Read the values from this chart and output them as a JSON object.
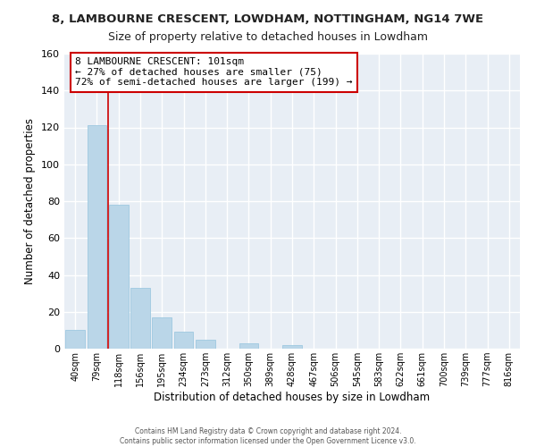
{
  "title": "8, LAMBOURNE CRESCENT, LOWDHAM, NOTTINGHAM, NG14 7WE",
  "subtitle": "Size of property relative to detached houses in Lowdham",
  "xlabel": "Distribution of detached houses by size in Lowdham",
  "ylabel": "Number of detached properties",
  "bar_labels": [
    "40sqm",
    "79sqm",
    "118sqm",
    "156sqm",
    "195sqm",
    "234sqm",
    "273sqm",
    "312sqm",
    "350sqm",
    "389sqm",
    "428sqm",
    "467sqm",
    "506sqm",
    "545sqm",
    "583sqm",
    "622sqm",
    "661sqm",
    "700sqm",
    "739sqm",
    "777sqm",
    "816sqm"
  ],
  "bar_values": [
    10,
    121,
    78,
    33,
    17,
    9,
    5,
    0,
    3,
    0,
    2,
    0,
    0,
    0,
    0,
    0,
    0,
    0,
    0,
    0,
    0
  ],
  "bar_color": "#bad6e8",
  "bar_edge_color": "#9ec9e0",
  "highlight_line_color": "#cc0000",
  "annotation_title": "8 LAMBOURNE CRESCENT: 101sqm",
  "annotation_line1": "← 27% of detached houses are smaller (75)",
  "annotation_line2": "72% of semi-detached houses are larger (199) →",
  "annotation_box_edge": "#cc0000",
  "ylim": [
    0,
    160
  ],
  "yticks": [
    0,
    20,
    40,
    60,
    80,
    100,
    120,
    140,
    160
  ],
  "footer1": "Contains HM Land Registry data © Crown copyright and database right 2024.",
  "footer2": "Contains public sector information licensed under the Open Government Licence v3.0.",
  "bg_color": "#ffffff",
  "plot_bg_color": "#e8eef5"
}
